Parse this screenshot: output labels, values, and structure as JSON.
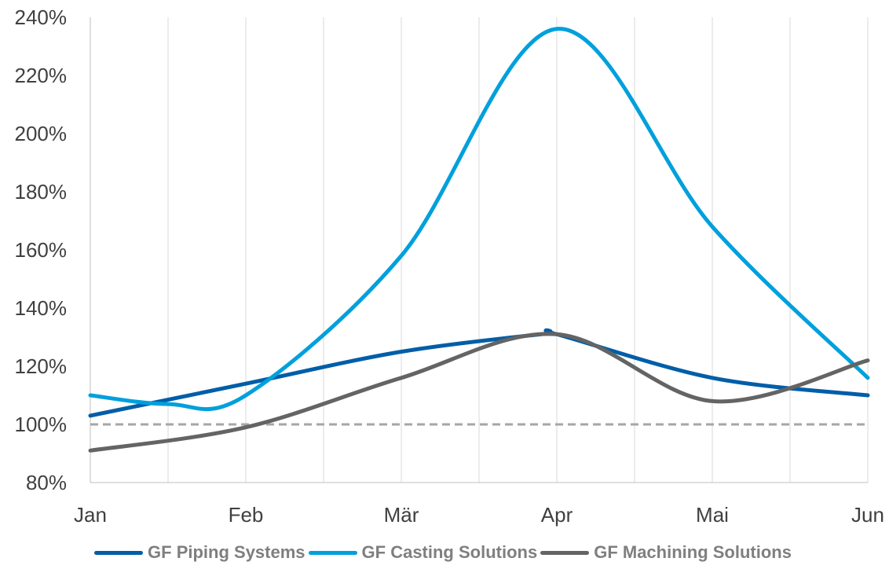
{
  "chart_data": {
    "type": "line",
    "categories": [
      "Jan",
      "Feb",
      "Mär",
      "Apr",
      "Mai",
      "Jun"
    ],
    "x_positions": [
      0,
      1,
      2,
      3,
      4,
      5
    ],
    "ylim": [
      80,
      240
    ],
    "y_ticks": [
      80,
      100,
      120,
      140,
      160,
      180,
      200,
      220,
      240
    ],
    "y_tick_labels": [
      "80%",
      "100%",
      "120%",
      "140%",
      "160%",
      "180%",
      "200%",
      "220%",
      "240%"
    ],
    "y_tick_suffix": "%",
    "grid": "vertical lines at every half month",
    "reference_line": {
      "value": 100,
      "style": "dashed",
      "color": "#a6a6a6"
    },
    "legend_position": "bottom",
    "smooth": true,
    "series": [
      {
        "name": "GF Piping Systems",
        "color": "#005ea8",
        "x": [
          0,
          1,
          2,
          2.9,
          3,
          4,
          5
        ],
        "values": [
          103,
          114,
          125,
          131,
          131,
          116,
          110
        ]
      },
      {
        "name": "GF Casting Solutions",
        "color": "#00a0dc",
        "x": [
          0,
          0.5,
          1,
          2,
          3,
          4,
          5
        ],
        "values": [
          110,
          107,
          110,
          158,
          236,
          168,
          116
        ]
      },
      {
        "name": "GF Machining Solutions",
        "color": "#646464",
        "x": [
          0,
          1,
          2,
          3,
          4,
          5
        ],
        "values": [
          91,
          99,
          116,
          131,
          108,
          122
        ]
      }
    ]
  }
}
